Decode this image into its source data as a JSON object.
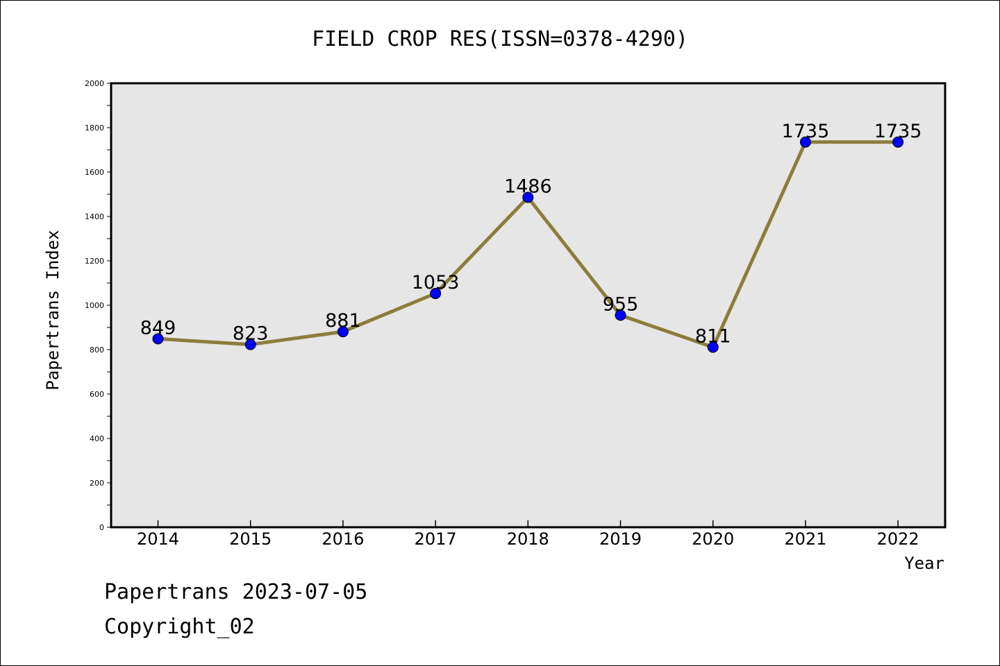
{
  "chart_data": {
    "type": "line",
    "title": "FIELD CROP RES(ISSN=0378-4290)",
    "xlabel": "Year",
    "ylabel": "Papertrans Index",
    "categories": [
      "2014",
      "2015",
      "2016",
      "2017",
      "2018",
      "2019",
      "2020",
      "2021",
      "2022"
    ],
    "series": [
      {
        "values": [
          849,
          823,
          881,
          1053,
          1486,
          955,
          811,
          1735,
          1735
        ]
      }
    ],
    "data_labels": [
      "849",
      "823",
      "881",
      "1053",
      "1486",
      "955",
      "811",
      "1735",
      "1735"
    ],
    "ylim": [
      0,
      2000
    ],
    "yticks": [
      "0",
      "200",
      "400",
      "600",
      "800",
      "1000",
      "1200",
      "1400",
      "1600",
      "1800",
      "2000"
    ],
    "grid": false,
    "colors": {
      "line": "#8B7D3A",
      "marker": "#0000FF",
      "plot_background": "#E6E6E6"
    }
  },
  "footer": {
    "line1": "Papertrans 2023-07-05",
    "line2": "Copyright_02"
  }
}
